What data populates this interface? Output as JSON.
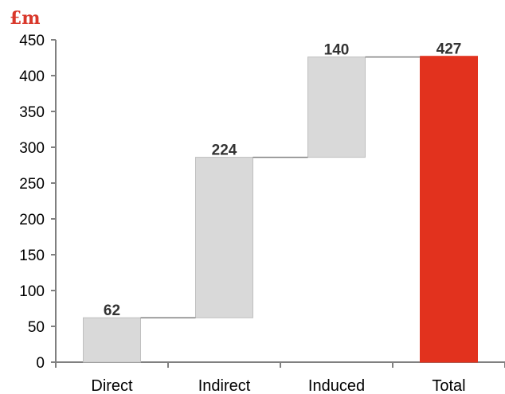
{
  "chart_data": {
    "type": "bar",
    "subtype": "waterfall",
    "unit_label": "£m",
    "categories": [
      "Direct",
      "Indirect",
      "Induced",
      "Total"
    ],
    "values": [
      62,
      224,
      140,
      427
    ],
    "value_labels": [
      "62",
      "224",
      "140",
      "427"
    ],
    "is_total": [
      false,
      false,
      false,
      true
    ],
    "ylim": [
      0,
      450
    ],
    "yticks": [
      0,
      50,
      100,
      150,
      200,
      250,
      300,
      350,
      400,
      450
    ],
    "grid": false,
    "legend": "none"
  },
  "colors": {
    "increment_bar": "#d9d9d9",
    "increment_border": "#bfbfbf",
    "total_bar": "#e2321e",
    "connector": "#808080",
    "axis": "#808080",
    "unit_label": "#d9372a"
  }
}
